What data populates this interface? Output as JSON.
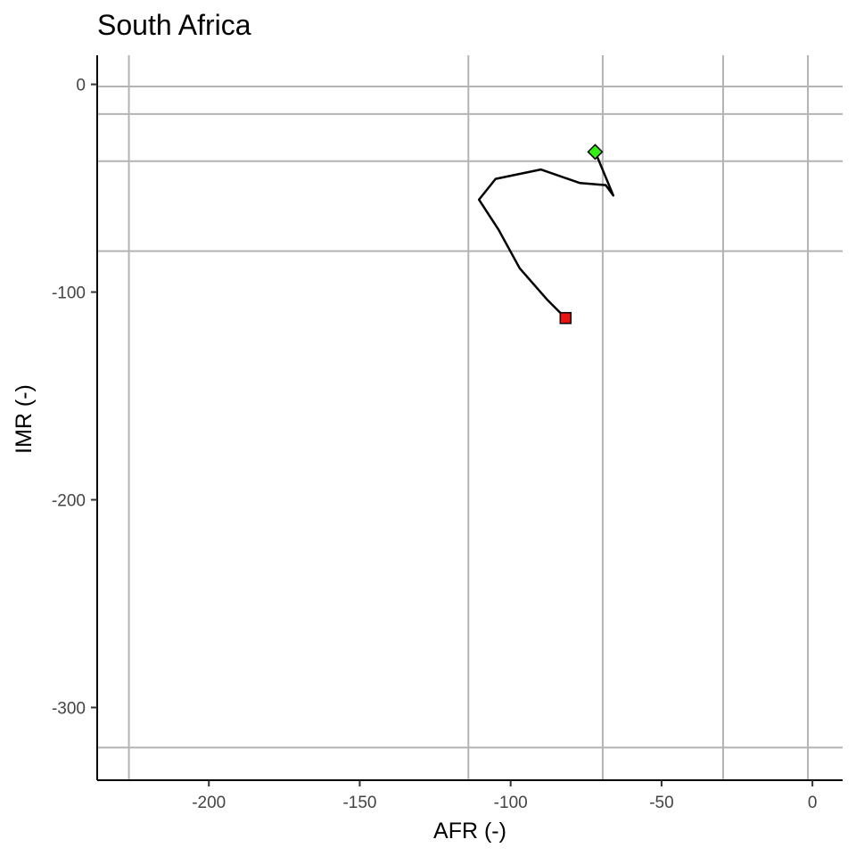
{
  "chart_data": {
    "type": "line",
    "title": "South Africa",
    "xlabel": "AFR (-)",
    "ylabel": "IMR (-)",
    "xlim": [
      -237,
      10
    ],
    "ylim": [
      -335,
      14
    ],
    "x_ticks": [
      -200,
      -150,
      -100,
      -50,
      0
    ],
    "y_ticks": [
      0,
      -100,
      -200,
      -300
    ],
    "grid": true,
    "legend": "none",
    "reference_lines": {
      "vertical": [
        -226.5,
        -114,
        -69.5,
        -29.6,
        -1.5
      ],
      "horizontal": [
        -1,
        -14.3,
        -37,
        -80.3,
        -319.3
      ]
    },
    "series": [
      {
        "x": [
          -72,
          -66,
          -68.5,
          -77,
          -90,
          -105,
          -110.5,
          -104,
          -97,
          -88,
          -81.8
        ],
        "y": [
          -32.5,
          -53.5,
          -48.5,
          -47.5,
          -41,
          -45.5,
          -55.5,
          -70,
          -88.5,
          -103.5,
          -112.5
        ]
      }
    ],
    "markers": [
      {
        "shape": "diamond",
        "color": "#33ee11",
        "x": -72,
        "y": -32.5
      },
      {
        "shape": "square",
        "color": "#ee1111",
        "x": -81.8,
        "y": -112.5
      }
    ],
    "colors": {
      "grid": "#b3b3b3",
      "axis": "#000000",
      "line": "#000000"
    }
  }
}
